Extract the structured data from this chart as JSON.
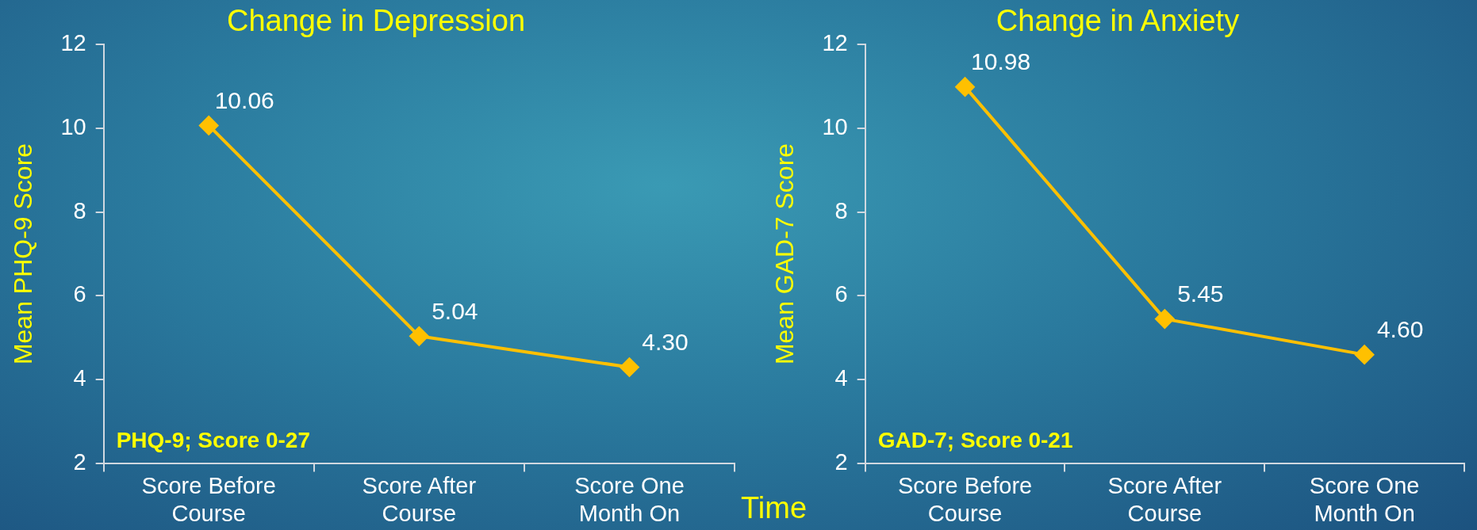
{
  "chart_data": [
    {
      "type": "line",
      "title": "Change in Depression",
      "ylabel": "Mean PHQ-9 Score",
      "xlabel": "Time",
      "categories": [
        "Score Before Course",
        "Score After Course",
        "Score One Month On"
      ],
      "series": [
        {
          "color": "#ffc000",
          "values": [
            10.06,
            5.04,
            4.3
          ],
          "value_labels": [
            "10.06",
            "5.04",
            "4.30"
          ]
        }
      ],
      "ylim": [
        2,
        12
      ],
      "yticks": [
        2,
        4,
        6,
        8,
        10,
        12
      ],
      "marker": "diamond",
      "annotations": [
        "PHQ-9; Score 0-27"
      ]
    },
    {
      "type": "line",
      "title": "Change in Anxiety",
      "ylabel": "Mean GAD-7 Score",
      "categories": [
        "Score Before Course",
        "Score After Course",
        "Score One Month On"
      ],
      "series": [
        {
          "color": "#ffc000",
          "values": [
            10.98,
            5.45,
            4.6
          ],
          "value_labels": [
            "10.98",
            "5.45",
            "4.60"
          ]
        }
      ],
      "ylim": [
        2,
        12
      ],
      "yticks": [
        2,
        4,
        6,
        8,
        10,
        12
      ],
      "marker": "diamond",
      "annotations": [
        "GAD-7; Score 0-21"
      ]
    }
  ]
}
